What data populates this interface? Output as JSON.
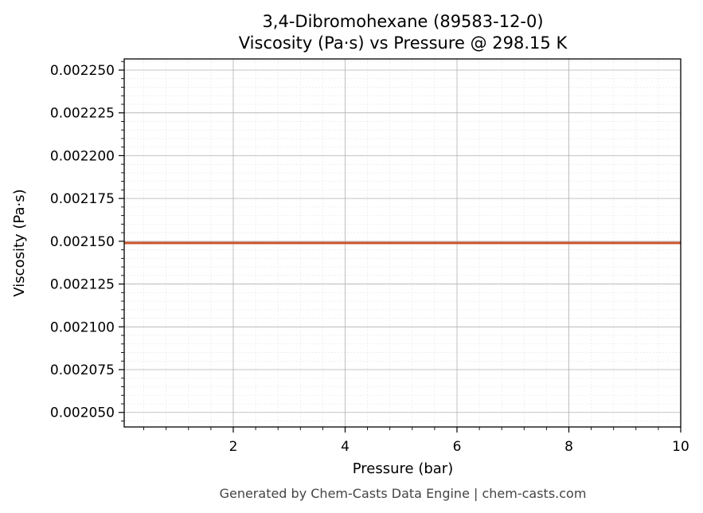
{
  "chart_data": {
    "type": "line",
    "title": "3,4-Dibromohexane (89583-12-0)",
    "subtitle": "Viscosity (Pa·s) vs Pressure @ 298.15 K",
    "xlabel": "Pressure (bar)",
    "ylabel": "Viscosity (Pa·s)",
    "xlim": [
      0.05,
      10
    ],
    "ylim": [
      0.0020415,
      0.0022565
    ],
    "xticks": [
      2,
      4,
      6,
      8,
      10
    ],
    "xtick_labels": [
      "2",
      "4",
      "6",
      "8",
      "10"
    ],
    "yticks": [
      0.00205,
      0.002075,
      0.0021,
      0.002125,
      0.00215,
      0.002175,
      0.0022,
      0.002225,
      0.00225
    ],
    "ytick_labels": [
      "0.002050",
      "0.002075",
      "0.002100",
      "0.002125",
      "0.002150",
      "0.002175",
      "0.002200",
      "0.002225",
      "0.002250"
    ],
    "grid": true,
    "minor_grid": true,
    "series": [
      {
        "color": "#c8552b",
        "x": [
          0.05,
          1,
          2,
          3,
          4,
          5,
          6,
          7,
          8,
          9,
          10
        ],
        "y": [
          0.002149,
          0.002149,
          0.002149,
          0.002149,
          0.002149,
          0.002149,
          0.002149,
          0.002149,
          0.002149,
          0.002149,
          0.002149
        ]
      }
    ]
  },
  "footer": "Generated by Chem-Casts Data Engine | chem-casts.com"
}
